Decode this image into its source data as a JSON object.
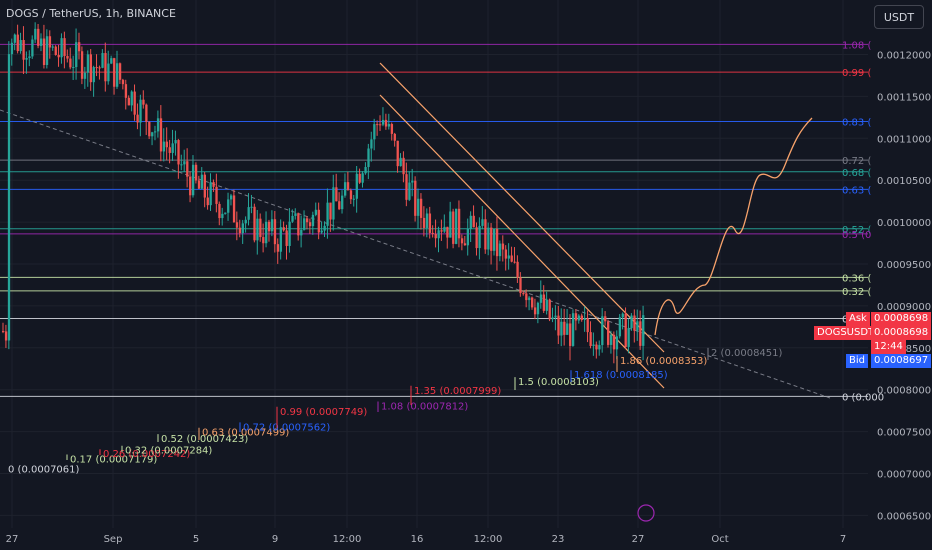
{
  "header": {
    "title": "DOGS / TetherUS, 1h, BINANCE",
    "currency_button": "USDT"
  },
  "colors": {
    "background": "#131722",
    "up": "#26a69a",
    "down": "#ef5350",
    "projection": "#f7a26b",
    "trendline": "#f7a26b",
    "midline": "#787b86"
  },
  "price_panel": {
    "ask_label": "Ask",
    "ask_value": "0.0008698",
    "symbol_label": "DOGSUSDT",
    "symbol_value": "0.0008698",
    "countdown": "12:44",
    "bid_label": "Bid",
    "bid_value": "0.0008697"
  },
  "chart_data": {
    "type": "candlestick",
    "title": "DOGS / TetherUS, 1h, BINANCE",
    "y_axis": {
      "ticks": [
        "0.0012000",
        "0.0011500",
        "0.0011000",
        "0.0010500",
        "0.0010000",
        "0.0009500",
        "0.0009000",
        "0.0008500",
        "0.0008000",
        "0.0007500",
        "0.0007000",
        "0.0006500"
      ],
      "ylim": [
        0.000635,
        0.001265
      ],
      "scale": "linear"
    },
    "x_axis": {
      "ticks": [
        "27",
        "Sep",
        "5",
        "9",
        "12:00",
        "16",
        "12:00",
        "23",
        "27",
        "Oct",
        "7"
      ]
    },
    "series_shape": {
      "description": "hourly candles, approximate trajectory",
      "path_points": [
        {
          "t": "27",
          "price": 0.00122
        },
        {
          "t": "Sep",
          "price": 0.00118
        },
        {
          "t": "5",
          "price": 0.00104
        },
        {
          "t": "9",
          "price": 0.00098
        },
        {
          "t": "12:00",
          "price": 0.00103
        },
        {
          "t": "12:00+",
          "price": 0.00113
        },
        {
          "t": "16",
          "price": 0.00101
        },
        {
          "t": "12:00b",
          "price": 0.00098
        },
        {
          "t": "23",
          "price": 0.00087
        },
        {
          "t": "27",
          "price": 0.00087
        }
      ]
    },
    "fib_upper": [
      {
        "label": "1.08 (",
        "price": 0.001212,
        "color": "#9c27b0"
      },
      {
        "label": "0.99 (",
        "price": 0.001179,
        "color": "#f23645"
      },
      {
        "label": "0.83 (",
        "price": 0.00112,
        "color": "#2962ff"
      },
      {
        "label": "0.72 (",
        "price": 0.001074,
        "color": "#787b86"
      },
      {
        "label": "0.68 (",
        "price": 0.00106,
        "color": "#26a69a"
      },
      {
        "label": "0.63 (",
        "price": 0.001039,
        "color": "#2962ff"
      },
      {
        "label": "0.52 (",
        "price": 0.000992,
        "color": "#26a69a"
      },
      {
        "label": "0.5 (0",
        "price": 0.000986,
        "color": "#9c27b0"
      },
      {
        "label": "0.36 (",
        "price": 0.000934,
        "color": "#c5e1a5"
      },
      {
        "label": "0.32 (",
        "price": 0.000918,
        "color": "#c5e1a5"
      },
      {
        "label": "0 (",
        "price": 0.000885,
        "color": "#d1d4dc"
      },
      {
        "label": "0 (0.000",
        "price": 0.000792,
        "color": "#d1d4dc"
      }
    ],
    "fib_lower": [
      {
        "label": "0 (0.0007061)",
        "price": 0.0007061,
        "color": "#d1d4dc"
      },
      {
        "label": "0.17 (0.0007179)",
        "price": 0.0007179,
        "color": "#c5e1a5"
      },
      {
        "label": "0.26 (0.0007242)",
        "price": 0.0007242,
        "color": "#f23645"
      },
      {
        "label": "0.32 (0.0007284)",
        "price": 0.0007284,
        "color": "#c5e1a5"
      },
      {
        "label": "0.52 (0.0007423)",
        "price": 0.0007423,
        "color": "#c5e1a5"
      },
      {
        "label": "0.63 (0.0007499)",
        "price": 0.0007499,
        "color": "#f7a26b"
      },
      {
        "label": "0.72 (0.0007562)",
        "price": 0.0007562,
        "color": "#2962ff"
      },
      {
        "label": "0.99 (0.0007749)",
        "price": 0.0007749,
        "color": "#f23645"
      },
      {
        "label": "1.08 (0.0007812)",
        "price": 0.0007812,
        "color": "#9c27b0"
      },
      {
        "label": "1.35 (0.0007999)",
        "price": 0.0007999,
        "color": "#f23645"
      },
      {
        "label": "1.5 (0.0008103)",
        "price": 0.0008103,
        "color": "#c5e1a5"
      },
      {
        "label": "1.618 (0.0008185)",
        "price": 0.0008185,
        "color": "#2962ff"
      },
      {
        "label": "1.86 (0.0008353)",
        "price": 0.0008353,
        "color": "#f7a26b"
      },
      {
        "label": "2 (0.0008451)",
        "price": 0.0008451,
        "color": "#787b86"
      }
    ]
  }
}
